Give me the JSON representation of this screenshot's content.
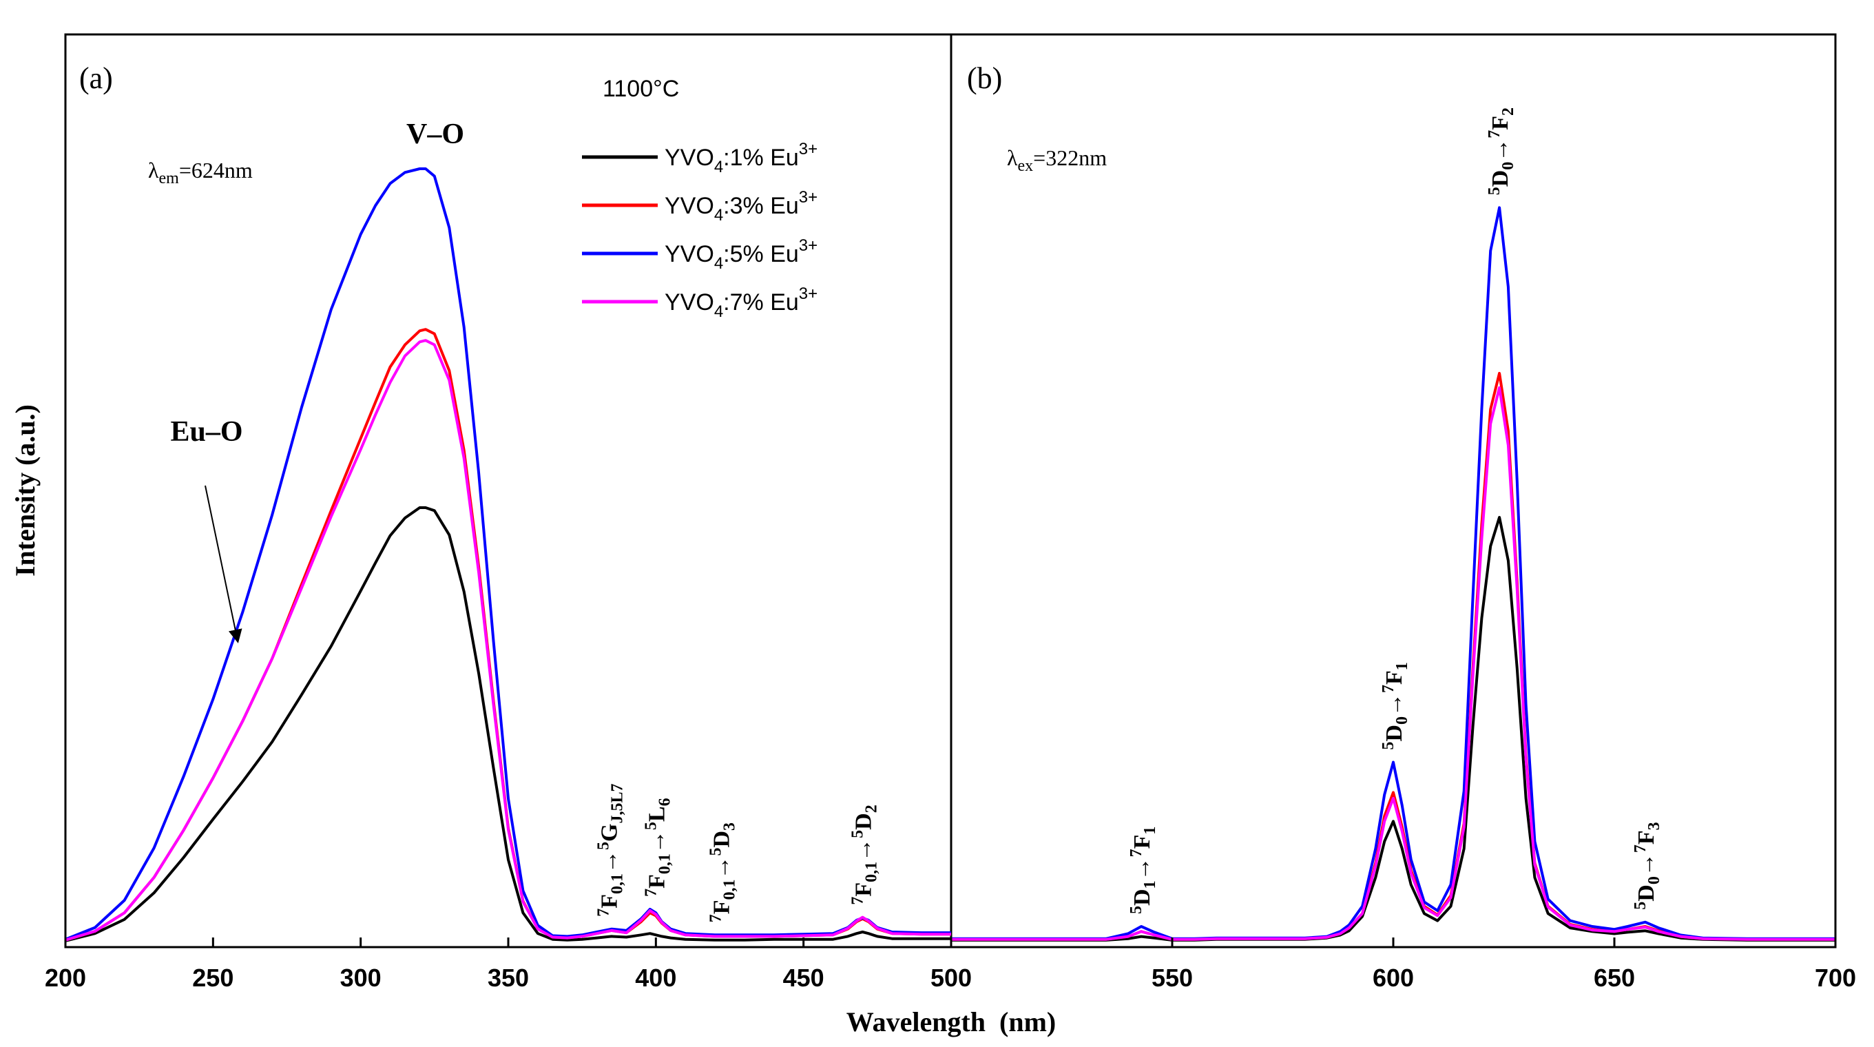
{
  "chart_data": [
    {
      "panel": "(a)",
      "type": "line",
      "title": "1100°C",
      "xlabel": "Wavelength  (nm)",
      "ylabel": "Intensity (a.u.)",
      "xlim": [
        200,
        500
      ],
      "ylim": [
        0,
        1.05
      ],
      "xticks": [
        200,
        250,
        300,
        350,
        400,
        450,
        500
      ],
      "condition": {
        "symbol": "λ",
        "sub": "em",
        "value": "=624nm"
      },
      "annotations": {
        "vo": "V–O",
        "euo": "Eu–O"
      },
      "legend": [
        {
          "text": "YVO",
          "sub": "4",
          "rest": ":1% Eu",
          "sup": "3+",
          "color": "#000000"
        },
        {
          "text": "YVO",
          "sub": "4",
          "rest": ":3% Eu",
          "sup": "3+",
          "color": "#ff0000"
        },
        {
          "text": "YVO",
          "sub": "4",
          "rest": ":5% Eu",
          "sup": "3+",
          "color": "#0000ff"
        },
        {
          "text": "YVO",
          "sub": "4",
          "rest": ":7% Eu",
          "sup": "3+",
          "color": "#ff00ff"
        }
      ],
      "series": [
        {
          "name": "YVO4:1% Eu3+",
          "color": "#000000",
          "x": [
            200,
            210,
            220,
            230,
            240,
            250,
            260,
            270,
            280,
            290,
            300,
            305,
            310,
            315,
            320,
            322,
            325,
            330,
            335,
            340,
            345,
            350,
            355,
            360,
            365,
            370,
            375,
            380,
            385,
            390,
            395,
            398,
            400,
            402,
            405,
            410,
            420,
            430,
            440,
            450,
            460,
            465,
            468,
            470,
            472,
            475,
            480,
            490,
            500
          ],
          "y": [
            0.002,
            0.012,
            0.031,
            0.067,
            0.115,
            0.167,
            0.218,
            0.272,
            0.336,
            0.402,
            0.477,
            0.515,
            0.552,
            0.576,
            0.59,
            0.59,
            0.586,
            0.553,
            0.476,
            0.365,
            0.236,
            0.112,
            0.04,
            0.012,
            0.004,
            0.003,
            0.004,
            0.006,
            0.008,
            0.007,
            0.01,
            0.012,
            0.01,
            0.008,
            0.006,
            0.004,
            0.003,
            0.003,
            0.004,
            0.004,
            0.004,
            0.008,
            0.012,
            0.014,
            0.012,
            0.008,
            0.005,
            0.005,
            0.005
          ]
        },
        {
          "name": "YVO4:3% Eu3+",
          "color": "#ff0000",
          "x": [
            200,
            210,
            220,
            230,
            240,
            250,
            260,
            270,
            280,
            290,
            300,
            305,
            310,
            315,
            320,
            322,
            325,
            330,
            335,
            340,
            345,
            350,
            355,
            360,
            365,
            370,
            375,
            380,
            385,
            390,
            395,
            398,
            400,
            402,
            405,
            410,
            420,
            430,
            440,
            450,
            460,
            465,
            468,
            470,
            472,
            475,
            480,
            490,
            500
          ],
          "y": [
            0.003,
            0.015,
            0.04,
            0.088,
            0.152,
            0.223,
            0.3,
            0.385,
            0.486,
            0.586,
            0.684,
            0.733,
            0.781,
            0.811,
            0.83,
            0.832,
            0.826,
            0.776,
            0.668,
            0.51,
            0.327,
            0.155,
            0.056,
            0.018,
            0.007,
            0.006,
            0.008,
            0.012,
            0.016,
            0.013,
            0.028,
            0.04,
            0.036,
            0.026,
            0.016,
            0.01,
            0.008,
            0.008,
            0.008,
            0.009,
            0.01,
            0.018,
            0.028,
            0.032,
            0.028,
            0.018,
            0.012,
            0.011,
            0.011
          ]
        },
        {
          "name": "YVO4:5% Eu3+",
          "color": "#0000ff",
          "x": [
            200,
            210,
            220,
            230,
            240,
            250,
            260,
            270,
            280,
            290,
            300,
            305,
            310,
            315,
            320,
            322,
            325,
            330,
            335,
            340,
            345,
            350,
            355,
            360,
            365,
            370,
            375,
            380,
            385,
            390,
            395,
            398,
            400,
            402,
            405,
            410,
            420,
            430,
            440,
            450,
            460,
            465,
            468,
            470,
            472,
            475,
            480,
            490,
            500
          ],
          "y": [
            0.004,
            0.02,
            0.057,
            0.128,
            0.225,
            0.33,
            0.448,
            0.58,
            0.726,
            0.859,
            0.961,
            1.0,
            1.03,
            1.045,
            1.05,
            1.05,
            1.04,
            0.97,
            0.835,
            0.637,
            0.408,
            0.195,
            0.07,
            0.023,
            0.009,
            0.008,
            0.01,
            0.014,
            0.018,
            0.016,
            0.032,
            0.045,
            0.04,
            0.028,
            0.018,
            0.012,
            0.01,
            0.01,
            0.01,
            0.011,
            0.012,
            0.02,
            0.03,
            0.033,
            0.03,
            0.02,
            0.014,
            0.013,
            0.013
          ]
        },
        {
          "name": "YVO4:7% Eu3+",
          "color": "#ff00ff",
          "x": [
            200,
            210,
            220,
            230,
            240,
            250,
            260,
            270,
            280,
            290,
            300,
            305,
            310,
            315,
            320,
            322,
            325,
            330,
            335,
            340,
            345,
            350,
            355,
            360,
            365,
            370,
            375,
            380,
            385,
            390,
            395,
            398,
            400,
            402,
            405,
            410,
            420,
            430,
            440,
            450,
            460,
            465,
            468,
            470,
            472,
            475,
            480,
            490,
            500
          ],
          "y": [
            0.003,
            0.015,
            0.04,
            0.088,
            0.152,
            0.223,
            0.3,
            0.385,
            0.481,
            0.578,
            0.669,
            0.716,
            0.76,
            0.796,
            0.815,
            0.817,
            0.811,
            0.763,
            0.657,
            0.502,
            0.322,
            0.153,
            0.055,
            0.018,
            0.007,
            0.006,
            0.008,
            0.012,
            0.016,
            0.013,
            0.03,
            0.043,
            0.038,
            0.027,
            0.016,
            0.01,
            0.008,
            0.008,
            0.008,
            0.009,
            0.01,
            0.019,
            0.029,
            0.034,
            0.029,
            0.019,
            0.012,
            0.011,
            0.011
          ]
        }
      ],
      "peak_labels": [
        {
          "x": 384,
          "text": "7F0,1→5GJ,5L7"
        },
        {
          "x": 400,
          "text": "7F0,1→5L6"
        },
        {
          "x": 422,
          "text": "7F0,1→5D3"
        },
        {
          "x": 470,
          "text": "7F0,1→5D2"
        }
      ]
    },
    {
      "panel": "(b)",
      "type": "line",
      "xlabel": "Wavelength  (nm)",
      "xlim": [
        500,
        700
      ],
      "ylim": [
        0,
        1.05
      ],
      "xticks": [
        500,
        550,
        600,
        650,
        700
      ],
      "condition": {
        "symbol": "λ",
        "sub": "ex",
        "value": "=322nm"
      },
      "series": [
        {
          "name": "YVO4:1% Eu3+",
          "color": "#000000",
          "x": [
            500,
            520,
            535,
            540,
            543,
            546,
            550,
            555,
            560,
            565,
            570,
            575,
            580,
            585,
            588,
            590,
            593,
            596,
            598,
            600,
            602,
            604,
            607,
            610,
            613,
            616,
            618,
            620,
            622,
            624,
            626,
            628,
            630,
            632,
            635,
            640,
            645,
            650,
            653,
            657,
            660,
            665,
            670,
            680,
            690,
            700
          ],
          "y": [
            0.003,
            0.003,
            0.003,
            0.005,
            0.008,
            0.006,
            0.003,
            0.003,
            0.004,
            0.004,
            0.004,
            0.004,
            0.004,
            0.006,
            0.01,
            0.016,
            0.036,
            0.09,
            0.14,
            0.168,
            0.13,
            0.08,
            0.04,
            0.03,
            0.05,
            0.13,
            0.3,
            0.45,
            0.55,
            0.59,
            0.53,
            0.38,
            0.2,
            0.09,
            0.04,
            0.02,
            0.015,
            0.012,
            0.014,
            0.016,
            0.012,
            0.006,
            0.004,
            0.003,
            0.003,
            0.003
          ]
        },
        {
          "name": "YVO4:3% Eu3+",
          "color": "#ff0000",
          "x": [
            500,
            520,
            535,
            540,
            543,
            546,
            550,
            555,
            560,
            565,
            570,
            575,
            580,
            585,
            588,
            590,
            593,
            596,
            598,
            600,
            602,
            604,
            607,
            610,
            613,
            616,
            618,
            620,
            622,
            624,
            626,
            628,
            630,
            632,
            635,
            640,
            645,
            650,
            653,
            657,
            660,
            665,
            670,
            680,
            690,
            700
          ],
          "y": [
            0.004,
            0.004,
            0.004,
            0.008,
            0.015,
            0.01,
            0.004,
            0.004,
            0.005,
            0.005,
            0.005,
            0.005,
            0.005,
            0.007,
            0.012,
            0.02,
            0.04,
            0.11,
            0.175,
            0.208,
            0.16,
            0.1,
            0.05,
            0.038,
            0.065,
            0.165,
            0.38,
            0.58,
            0.74,
            0.79,
            0.71,
            0.5,
            0.26,
            0.11,
            0.05,
            0.025,
            0.018,
            0.015,
            0.018,
            0.022,
            0.016,
            0.008,
            0.005,
            0.004,
            0.004,
            0.004
          ]
        },
        {
          "name": "YVO4:5% Eu3+",
          "color": "#0000ff",
          "x": [
            500,
            520,
            535,
            540,
            543,
            546,
            550,
            555,
            560,
            565,
            570,
            575,
            580,
            585,
            588,
            590,
            593,
            596,
            598,
            600,
            602,
            604,
            607,
            610,
            613,
            616,
            618,
            620,
            622,
            624,
            626,
            628,
            630,
            632,
            635,
            640,
            645,
            650,
            653,
            657,
            660,
            665,
            670,
            680,
            690,
            700
          ],
          "y": [
            0.005,
            0.005,
            0.005,
            0.012,
            0.022,
            0.014,
            0.005,
            0.005,
            0.006,
            0.006,
            0.006,
            0.006,
            0.006,
            0.008,
            0.015,
            0.024,
            0.05,
            0.13,
            0.205,
            0.25,
            0.19,
            0.115,
            0.056,
            0.044,
            0.08,
            0.21,
            0.48,
            0.74,
            0.96,
            1.02,
            0.91,
            0.64,
            0.33,
            0.14,
            0.06,
            0.03,
            0.022,
            0.018,
            0.022,
            0.028,
            0.02,
            0.01,
            0.006,
            0.005,
            0.005,
            0.005
          ]
        },
        {
          "name": "YVO4:7% Eu3+",
          "color": "#ff00ff",
          "x": [
            500,
            520,
            535,
            540,
            543,
            546,
            550,
            555,
            560,
            565,
            570,
            575,
            580,
            585,
            588,
            590,
            593,
            596,
            598,
            600,
            602,
            604,
            607,
            610,
            613,
            616,
            618,
            620,
            622,
            624,
            626,
            628,
            630,
            632,
            635,
            640,
            645,
            650,
            653,
            657,
            660,
            665,
            670,
            680,
            690,
            700
          ],
          "y": [
            0.004,
            0.004,
            0.004,
            0.008,
            0.015,
            0.01,
            0.004,
            0.004,
            0.005,
            0.005,
            0.005,
            0.005,
            0.005,
            0.007,
            0.012,
            0.02,
            0.04,
            0.106,
            0.168,
            0.2,
            0.154,
            0.096,
            0.048,
            0.037,
            0.062,
            0.16,
            0.37,
            0.56,
            0.72,
            0.77,
            0.69,
            0.49,
            0.255,
            0.108,
            0.049,
            0.024,
            0.017,
            0.015,
            0.018,
            0.021,
            0.015,
            0.008,
            0.005,
            0.004,
            0.004,
            0.004
          ]
        }
      ],
      "peak_labels": [
        {
          "x": 543,
          "text": "5D1→7F1"
        },
        {
          "x": 600,
          "text": "5D0→7F1"
        },
        {
          "x": 624,
          "text": "5D0→7F2"
        },
        {
          "x": 657,
          "text": "5D0→7F3"
        }
      ]
    }
  ]
}
